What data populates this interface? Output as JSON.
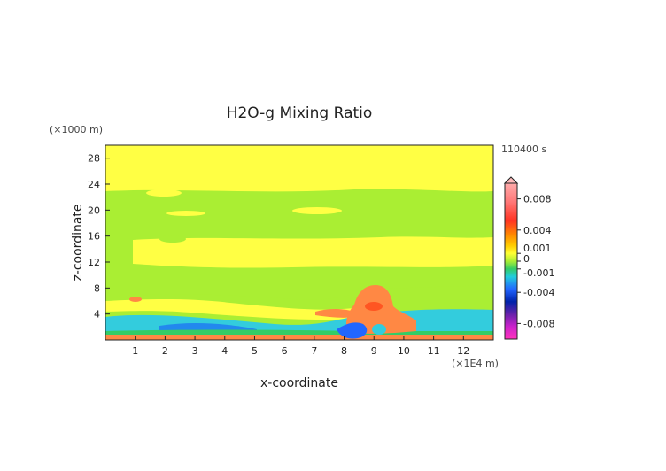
{
  "chart_data": {
    "type": "heatmap",
    "title": "H2O-g Mixing Ratio",
    "xlabel": "x-coordinate",
    "ylabel": "z-coordinate",
    "x_unit": "(×1E4 m)",
    "y_unit": "(×1000 m)",
    "time_label": "110400 s",
    "xlim": [
      0,
      13
    ],
    "ylim": [
      0,
      30
    ],
    "x_ticks": [
      "1",
      "2",
      "3",
      "4",
      "5",
      "6",
      "7",
      "8",
      "9",
      "10",
      "11",
      "12"
    ],
    "y_ticks": [
      "4",
      "8",
      "12",
      "16",
      "20",
      "24",
      "28"
    ],
    "colorbar": {
      "labels": [
        "0.008",
        "0.004",
        "0.001",
        "0",
        "-0.001",
        "-0.004",
        "-0.008"
      ],
      "values": [
        0.008,
        0.004,
        0.001,
        0,
        -0.001,
        -0.004,
        -0.008
      ],
      "range": [
        -0.01,
        0.01
      ]
    },
    "field_levels": [
      {
        "level": "upper",
        "value": -0.0002,
        "color": "#ffff44"
      },
      {
        "level": "middle",
        "value": -0.0006,
        "color": "#aaee33"
      },
      {
        "level": "lower",
        "value": -0.002,
        "color": "#33ccdd"
      },
      {
        "level": "plume",
        "value": 0.003,
        "color": "#ff8844"
      }
    ]
  }
}
